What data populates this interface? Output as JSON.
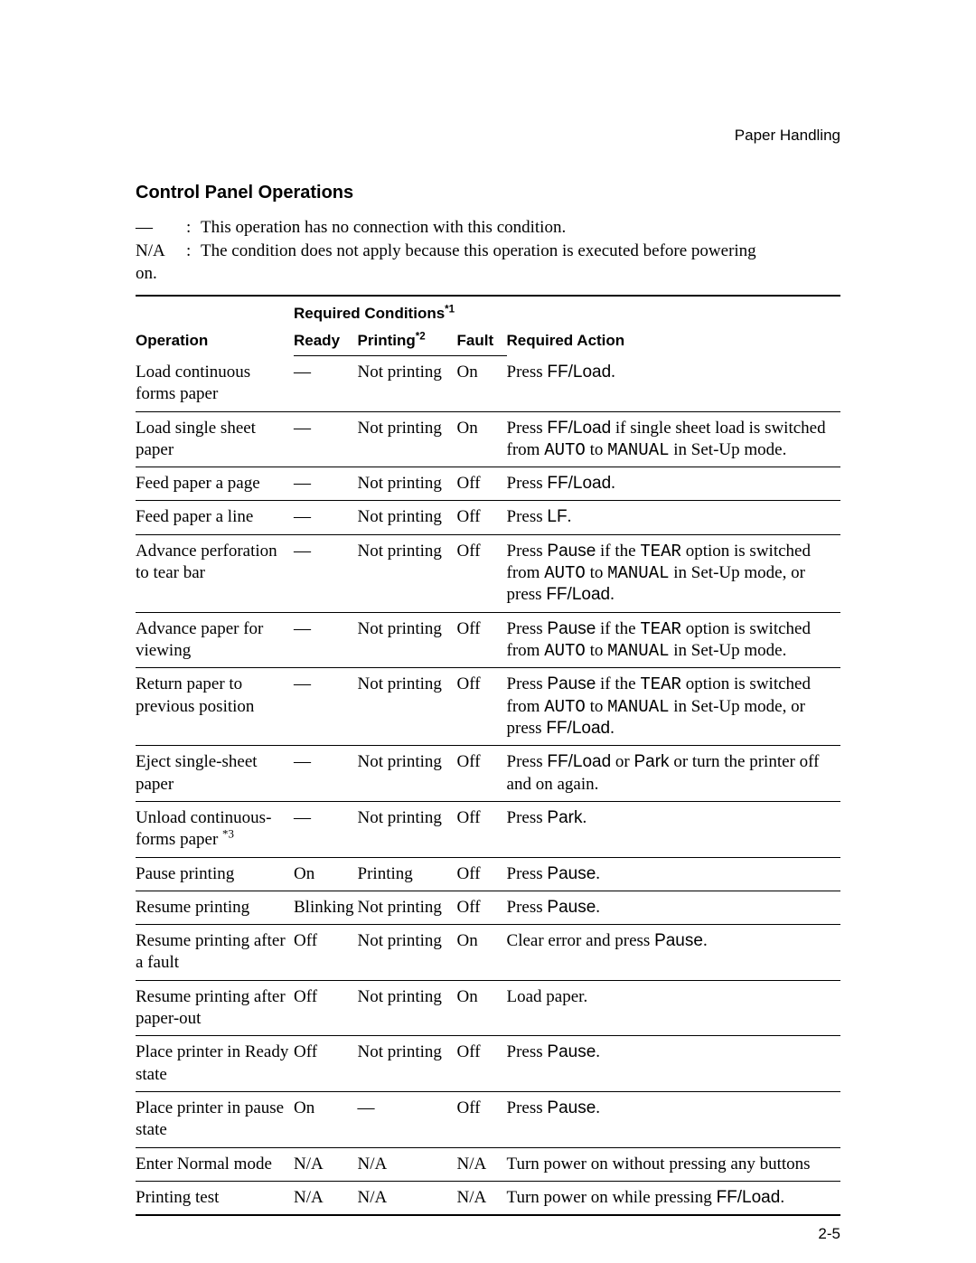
{
  "running_head": "Paper Handling",
  "section_title": "Control Panel Operations",
  "legend": {
    "dash_key": "—",
    "dash_text": "This operation has no connection with this condition.",
    "na_key": "N/A",
    "na_text": "The condition does not apply because this operation is executed before powering",
    "na_tail": "on.",
    "sep": ":"
  },
  "headers": {
    "operation": "Operation",
    "required_conditions": "Required Conditions",
    "required_conditions_sup": "*1",
    "ready": "Ready",
    "printing": "Printing",
    "printing_sup": "*2",
    "fault": "Fault",
    "required_action": "Required Action"
  },
  "rows": [
    {
      "operation": "Load continuous forms paper",
      "ready": "—",
      "printing": "Not printing",
      "fault": "On",
      "action_segments": [
        {
          "t": "Press ",
          "c": "serif"
        },
        {
          "t": "FF/Load",
          "c": "sans"
        },
        {
          "t": ".",
          "c": "serif"
        }
      ]
    },
    {
      "operation": "Load single sheet paper",
      "ready": "—",
      "printing": "Not printing",
      "fault": "On",
      "action_segments": [
        {
          "t": "Press ",
          "c": "serif"
        },
        {
          "t": "FF/Load",
          "c": "sans"
        },
        {
          "t": " if single sheet load is switched from ",
          "c": "serif"
        },
        {
          "t": "AUTO",
          "c": "mono"
        },
        {
          "t": " to ",
          "c": "serif"
        },
        {
          "t": "MANUAL",
          "c": "mono"
        },
        {
          "t": " in Set-Up mode.",
          "c": "serif"
        }
      ]
    },
    {
      "operation": "Feed paper a page",
      "ready": "—",
      "printing": "Not printing",
      "fault": "Off",
      "action_segments": [
        {
          "t": "Press ",
          "c": "serif"
        },
        {
          "t": "FF/Load",
          "c": "sans"
        },
        {
          "t": ".",
          "c": "serif"
        }
      ]
    },
    {
      "operation": "Feed paper a line",
      "ready": "—",
      "printing": "Not printing",
      "fault": "Off",
      "action_segments": [
        {
          "t": "Press ",
          "c": "serif"
        },
        {
          "t": "LF",
          "c": "sans"
        },
        {
          "t": ".",
          "c": "serif"
        }
      ]
    },
    {
      "operation": "Advance perforation to tear bar",
      "ready": "—",
      "printing": "Not printing",
      "fault": "Off",
      "action_segments": [
        {
          "t": "Press ",
          "c": "serif"
        },
        {
          "t": "Pause",
          "c": "sans"
        },
        {
          "t": " if the ",
          "c": "serif"
        },
        {
          "t": "TEAR",
          "c": "mono"
        },
        {
          "t": " option is switched from ",
          "c": "serif"
        },
        {
          "t": "AUTO",
          "c": "mono"
        },
        {
          "t": " to ",
          "c": "serif"
        },
        {
          "t": "MANUAL",
          "c": "mono"
        },
        {
          "t": " in Set-Up mode, or press ",
          "c": "serif"
        },
        {
          "t": "FF/Load",
          "c": "sans"
        },
        {
          "t": ".",
          "c": "serif"
        }
      ]
    },
    {
      "operation": "Advance paper for viewing",
      "ready": "—",
      "printing": "Not printing",
      "fault": "Off",
      "action_segments": [
        {
          "t": "Press ",
          "c": "serif"
        },
        {
          "t": "Pause",
          "c": "sans"
        },
        {
          "t": " if the ",
          "c": "serif"
        },
        {
          "t": "TEAR",
          "c": "mono"
        },
        {
          "t": " option is switched from ",
          "c": "serif"
        },
        {
          "t": "AUTO",
          "c": "mono"
        },
        {
          "t": " to ",
          "c": "serif"
        },
        {
          "t": "MANUAL",
          "c": "mono"
        },
        {
          "t": " in Set-Up mode.",
          "c": "serif"
        }
      ]
    },
    {
      "operation": "Return paper to previous position",
      "ready": "—",
      "printing": "Not printing",
      "fault": "Off",
      "action_segments": [
        {
          "t": "Press ",
          "c": "serif"
        },
        {
          "t": "Pause",
          "c": "sans"
        },
        {
          "t": " if the ",
          "c": "serif"
        },
        {
          "t": "TEAR",
          "c": "mono"
        },
        {
          "t": " option is switched from ",
          "c": "serif"
        },
        {
          "t": "AUTO",
          "c": "mono"
        },
        {
          "t": " to ",
          "c": "serif"
        },
        {
          "t": "MANUAL",
          "c": "mono"
        },
        {
          "t": " in Set-Up mode, or press ",
          "c": "serif"
        },
        {
          "t": "FF/Load",
          "c": "sans"
        },
        {
          "t": ".",
          "c": "serif"
        }
      ]
    },
    {
      "operation": "Eject single-sheet paper",
      "ready": "—",
      "printing": "Not printing",
      "fault": "Off",
      "action_segments": [
        {
          "t": "Press ",
          "c": "serif"
        },
        {
          "t": "FF/Load",
          "c": "sans"
        },
        {
          "t": " or ",
          "c": "serif"
        },
        {
          "t": "Park",
          "c": "sans"
        },
        {
          "t": " or turn the printer off and on again.",
          "c": "serif"
        }
      ]
    },
    {
      "operation": "Unload continuous-forms paper",
      "operation_sup": "*3",
      "ready": "—",
      "printing": "Not printing",
      "fault": "Off",
      "action_segments": [
        {
          "t": "Press ",
          "c": "serif"
        },
        {
          "t": "Park",
          "c": "sans"
        },
        {
          "t": ".",
          "c": "serif"
        }
      ]
    },
    {
      "operation": "Pause printing",
      "ready": "On",
      "printing": "Printing",
      "fault": "Off",
      "action_segments": [
        {
          "t": "Press ",
          "c": "serif"
        },
        {
          "t": "Pause",
          "c": "sans"
        },
        {
          "t": ".",
          "c": "serif"
        }
      ]
    },
    {
      "operation": "Resume printing",
      "ready": "Blinking",
      "printing": "Not printing",
      "fault": "Off",
      "action_segments": [
        {
          "t": "Press ",
          "c": "serif"
        },
        {
          "t": "Pause",
          "c": "sans"
        },
        {
          "t": ".",
          "c": "serif"
        }
      ]
    },
    {
      "operation": "Resume printing after a fault",
      "ready": "Off",
      "printing": "Not printing",
      "fault": "On",
      "action_segments": [
        {
          "t": "Clear error and press ",
          "c": "serif"
        },
        {
          "t": "Pause",
          "c": "sans"
        },
        {
          "t": ".",
          "c": "serif"
        }
      ]
    },
    {
      "operation": "Resume printing after paper-out",
      "ready": "Off",
      "printing": "Not printing",
      "fault": "On",
      "action_segments": [
        {
          "t": "Load paper.",
          "c": "serif"
        }
      ]
    },
    {
      "operation": "Place printer in Ready state",
      "ready": "Off",
      "printing": "Not printing",
      "fault": "Off",
      "action_segments": [
        {
          "t": "Press ",
          "c": "serif"
        },
        {
          "t": "Pause",
          "c": "sans"
        },
        {
          "t": ".",
          "c": "serif"
        }
      ]
    },
    {
      "operation": "Place printer in pause state",
      "ready": "On",
      "printing": "—",
      "fault": "Off",
      "action_segments": [
        {
          "t": "Press ",
          "c": "serif"
        },
        {
          "t": "Pause",
          "c": "sans"
        },
        {
          "t": ".",
          "c": "serif"
        }
      ]
    },
    {
      "operation": "Enter Normal mode",
      "ready": "N/A",
      "printing": "N/A",
      "fault": "N/A",
      "action_segments": [
        {
          "t": "Turn power on without pressing any buttons",
          "c": "serif"
        }
      ]
    },
    {
      "operation": "Printing test",
      "ready": "N/A",
      "printing": "N/A",
      "fault": "N/A",
      "action_segments": [
        {
          "t": "Turn power on while pressing ",
          "c": "serif"
        },
        {
          "t": "FF/Load",
          "c": "sans"
        },
        {
          "t": ".",
          "c": "serif"
        }
      ]
    }
  ],
  "page_number": "2-5"
}
